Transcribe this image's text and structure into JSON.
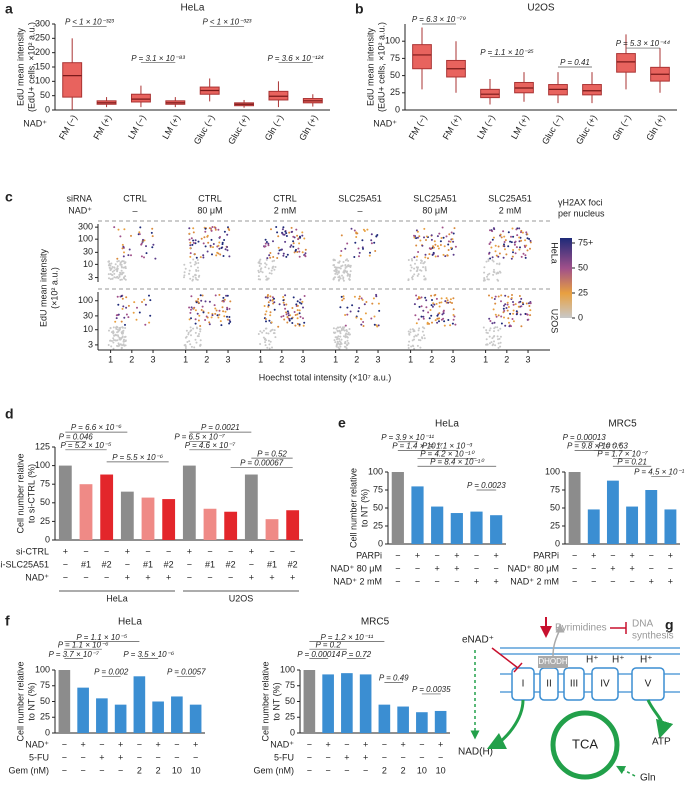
{
  "chart_data": [
    {
      "type": "box",
      "label": "a",
      "title": "HeLa",
      "ylabel": [
        "EdU mean intensity",
        "(EdU+ cells, ×10² a.u.)"
      ],
      "xprefix": "NAD⁺",
      "categories": [
        "FM (−)",
        "FM (+)",
        "LM (−)",
        "LM (+)",
        "Gluc (−)",
        "Gluc (+)",
        "Gln (−)",
        "Gln (+)"
      ],
      "boxes": [
        {
          "low": 0,
          "q1": 45,
          "median": 120,
          "q3": 165,
          "high": 250
        },
        {
          "low": 10,
          "q1": 20,
          "median": 25,
          "q3": 32,
          "high": 45
        },
        {
          "low": 10,
          "q1": 28,
          "median": 38,
          "q3": 55,
          "high": 85
        },
        {
          "low": 10,
          "q1": 20,
          "median": 25,
          "q3": 32,
          "high": 45
        },
        {
          "low": 30,
          "q1": 55,
          "median": 68,
          "q3": 80,
          "high": 110
        },
        {
          "low": 8,
          "q1": 15,
          "median": 20,
          "q3": 25,
          "high": 35
        },
        {
          "low": 10,
          "q1": 35,
          "median": 48,
          "q3": 65,
          "high": 100
        },
        {
          "low": 12,
          "q1": 25,
          "median": 32,
          "q3": 40,
          "high": 55
        }
      ],
      "color": "#e8635e",
      "ylim": [
        0,
        300
      ],
      "yticks": [
        0,
        50,
        100,
        150,
        200,
        250,
        300
      ],
      "annotations": [
        "P < 1 × 10⁻³²³",
        "P = 3.1 × 10⁻⁸³",
        "P < 1 × 10⁻³²³",
        "P = 3.6 × 10⁻¹²⁴"
      ]
    },
    {
      "type": "box",
      "label": "b",
      "title": "U2OS",
      "ylabel": [
        "EdU mean intensity",
        "(EdU+ cells, ×10² a.u.)"
      ],
      "xprefix": "NAD⁺",
      "categories": [
        "FM (−)",
        "FM (+)",
        "LM (−)",
        "LM (+)",
        "Gluc (−)",
        "Gluc (+)",
        "Gln (−)",
        "Gln (+)"
      ],
      "boxes": [
        {
          "low": 30,
          "q1": 60,
          "median": 80,
          "q3": 95,
          "high": 120
        },
        {
          "low": 25,
          "q1": 48,
          "median": 60,
          "q3": 72,
          "high": 100
        },
        {
          "low": 8,
          "q1": 18,
          "median": 23,
          "q3": 30,
          "high": 45
        },
        {
          "low": 12,
          "q1": 25,
          "median": 32,
          "q3": 40,
          "high": 55
        },
        {
          "low": 10,
          "q1": 22,
          "median": 30,
          "q3": 37,
          "high": 55
        },
        {
          "low": 10,
          "q1": 22,
          "median": 28,
          "q3": 37,
          "high": 55
        },
        {
          "low": 30,
          "q1": 55,
          "median": 70,
          "q3": 82,
          "high": 110
        },
        {
          "low": 25,
          "q1": 42,
          "median": 52,
          "q3": 62,
          "high": 90
        }
      ],
      "color": "#e8635e",
      "ylim": [
        0,
        125
      ],
      "yticks": [
        0,
        25,
        50,
        75,
        100
      ],
      "annotations": [
        "P = 6.3 × 10⁻⁷⁹",
        "P = 1.1 × 10⁻²⁵",
        "P = 0.41",
        "P = 5.3 × 10⁻⁴⁴"
      ]
    },
    {
      "type": "scatter",
      "label": "c",
      "ylabel": [
        "EdU mean intensity",
        "(×10² a.u.)"
      ],
      "xlabel": "Hoechst total intensity (×10⁷ a.u.)",
      "header_names": [
        "siRNA",
        "NAD⁺"
      ],
      "sirna": [
        "CTRL",
        "CTRL",
        "CTRL",
        "SLC25A51",
        "SLC25A51",
        "SLC25A51"
      ],
      "nad": [
        "–",
        "80 μM",
        "2 mM",
        "–",
        "80 μM",
        "2 mM"
      ],
      "xlim": [
        0.5,
        3.8
      ],
      "xticks": [
        1,
        2,
        3
      ],
      "ylog": true,
      "rows": [
        {
          "name": "HeLa",
          "ylim": [
            2,
            400
          ],
          "yticks": [
            3,
            10,
            30,
            100,
            300
          ]
        },
        {
          "name": "U2OS",
          "ylim": [
            2,
            200
          ],
          "yticks": [
            3,
            10,
            30,
            100
          ]
        }
      ],
      "colorbar": {
        "title": [
          "γH2AX foci",
          "per nucleus"
        ],
        "lim": [
          0,
          80
        ],
        "ticks": [
          {
            "value": 75,
            "label": "75+"
          },
          50,
          25,
          0
        ]
      }
    },
    {
      "type": "bar",
      "label": "d",
      "ylabel": [
        "Cell number relative",
        "to si-CTRL (%)"
      ],
      "values": [
        100,
        75,
        88,
        65,
        57,
        55,
        100,
        42,
        38,
        88,
        28,
        40
      ],
      "colors": [
        "#8c8c8c",
        "#ef8a86",
        "#e3262b",
        "#8c8c8c",
        "#ef8a86",
        "#e3262b",
        "#8c8c8c",
        "#ef8a86",
        "#e3262b",
        "#8c8c8c",
        "#ef8a86",
        "#e3262b"
      ],
      "ylim": [
        0,
        125
      ],
      "yticks": [
        0,
        25,
        50,
        75,
        100,
        125
      ],
      "rows": [
        {
          "label": "si-CTRL",
          "cells": [
            "+",
            "−",
            "−",
            "+",
            "−",
            "−",
            "+",
            "−",
            "−",
            "+",
            "−",
            "−"
          ]
        },
        {
          "label": "si-SLC25A51",
          "cells": [
            "−",
            "#1",
            "#2",
            "−",
            "#1",
            "#2",
            "−",
            "#1",
            "#2",
            "−",
            "#1",
            "#2"
          ]
        },
        {
          "label": "NAD⁺",
          "cells": [
            "−",
            "−",
            "−",
            "+",
            "+",
            "+",
            "−",
            "−",
            "−",
            "+",
            "+",
            "+"
          ]
        }
      ],
      "groups": [
        "HeLa",
        "U2OS"
      ],
      "annotations": [
        "P = 6.6 × 10⁻⁶",
        "P = 0.046",
        "P = 5.2 × 10⁻⁵",
        "P = 5.5 × 10⁻⁶",
        "P = 0.0021",
        "P = 6.5 × 10⁻⁷",
        "P = 4.6 × 10⁻⁷",
        "P = 0.52",
        "P = 0.00067"
      ]
    },
    {
      "type": "bar",
      "label": "e",
      "title": "HeLa",
      "ylabel": [
        "Cell number relative",
        "to NT (%)"
      ],
      "values": [
        100,
        80,
        52,
        43,
        45,
        40
      ],
      "colors": [
        "#8c8c8c",
        "#3b8ed2",
        "#3b8ed2",
        "#3b8ed2",
        "#3b8ed2",
        "#3b8ed2"
      ],
      "ylim": [
        0,
        100
      ],
      "yticks": [
        0,
        25,
        50,
        75,
        100
      ],
      "rows": [
        {
          "label": "PARPi",
          "cells": [
            "−",
            "+",
            "−",
            "+",
            "−",
            "+"
          ]
        },
        {
          "label": "NAD⁺ 80 μM",
          "cells": [
            "−",
            "−",
            "+",
            "+",
            "−",
            "−"
          ]
        },
        {
          "label": "NAD⁺ 2 mM",
          "cells": [
            "−",
            "−",
            "−",
            "−",
            "+",
            "+"
          ]
        }
      ],
      "annotations": [
        "P = 3.9 × 10⁻¹¹",
        "P = 1.4 × 10⁻⁷",
        "P = 1.1 × 10⁻³",
        "P = 4.2 × 10⁻¹⁰",
        "P = 8.4 × 10⁻¹⁰",
        "P = 0.0023"
      ]
    },
    {
      "type": "bar",
      "title": "MRC5",
      "values": [
        100,
        48,
        88,
        52,
        75,
        48
      ],
      "colors": [
        "#8c8c8c",
        "#3b8ed2",
        "#3b8ed2",
        "#3b8ed2",
        "#3b8ed2",
        "#3b8ed2"
      ],
      "ylim": [
        0,
        100
      ],
      "yticks": [
        0,
        25,
        50,
        75,
        100
      ],
      "rows": [
        {
          "label": "PARPi",
          "cells": [
            "−",
            "+",
            "−",
            "+",
            "−",
            "+"
          ]
        },
        {
          "label": "NAD⁺ 80 μM",
          "cells": [
            "−",
            "−",
            "+",
            "+",
            "−",
            "−"
          ]
        },
        {
          "label": "NAD⁺ 2 mM",
          "cells": [
            "−",
            "−",
            "−",
            "−",
            "+",
            "+"
          ]
        }
      ],
      "annotations": [
        "P = 0.00013",
        "P = 9.8 × 10⁻¹⁰",
        "P = 1.7 × 10⁻⁷",
        "P = 0.21",
        "P = 0.63",
        "P = 4.5 × 10⁻¹⁰"
      ]
    },
    {
      "type": "bar",
      "label": "f",
      "title": "HeLa",
      "ylabel": [
        "Cell number relative",
        "to NT (%)"
      ],
      "values": [
        100,
        72,
        55,
        45,
        90,
        50,
        58,
        45
      ],
      "colors": [
        "#8c8c8c",
        "#3b8ed2",
        "#3b8ed2",
        "#3b8ed2",
        "#3b8ed2",
        "#3b8ed2",
        "#3b8ed2",
        "#3b8ed2"
      ],
      "ylim": [
        0,
        100
      ],
      "yticks": [
        0,
        25,
        50,
        75,
        100
      ],
      "rows": [
        {
          "label": "NAD⁺",
          "cells": [
            "−",
            "+",
            "−",
            "+",
            "−",
            "+",
            "−",
            "+"
          ]
        },
        {
          "label": "5-FU",
          "cells": [
            "−",
            "−",
            "+",
            "+",
            "−",
            "−",
            "−",
            "−"
          ]
        },
        {
          "label": "Gem (nM)",
          "cells": [
            "−",
            "−",
            "−",
            "−",
            "2",
            "2",
            "10",
            "10"
          ]
        }
      ],
      "annotations": [
        "P = 1.1 × 10⁻⁵",
        "P = 1.1 × 10⁻⁶",
        "P = 3.7 × 10⁻⁷",
        "P = 0.002",
        "P = 3.5 × 10⁻⁶",
        "P = 0.0057"
      ]
    },
    {
      "type": "bar",
      "title": "MRC5",
      "ylabel": [
        "Cell number relative",
        "to NT (%)"
      ],
      "values": [
        100,
        93,
        95,
        93,
        45,
        42,
        33,
        35
      ],
      "colors": [
        "#8c8c8c",
        "#3b8ed2",
        "#3b8ed2",
        "#3b8ed2",
        "#3b8ed2",
        "#3b8ed2",
        "#3b8ed2",
        "#3b8ed2"
      ],
      "ylim": [
        0,
        100
      ],
      "yticks": [
        0,
        25,
        50,
        75,
        100
      ],
      "rows": [
        {
          "label": "NAD⁺",
          "cells": [
            "−",
            "+",
            "−",
            "+",
            "−",
            "+",
            "−",
            "+"
          ]
        },
        {
          "label": "5-FU",
          "cells": [
            "−",
            "−",
            "+",
            "+",
            "−",
            "−",
            "−",
            "−"
          ]
        },
        {
          "label": "Gem (nM)",
          "cells": [
            "−",
            "−",
            "−",
            "−",
            "2",
            "2",
            "10",
            "10"
          ]
        }
      ],
      "annotations": [
        "P = 1.2 × 10⁻¹¹",
        "P = 0.2",
        "P = 0.00014",
        "P = 0.72",
        "P = 0.49",
        "P = 0.0035"
      ]
    }
  ],
  "diagram": {
    "label": "g",
    "enad": "eNAD⁺",
    "pyrimidines": "Pyrimidines",
    "dna": [
      "DNA",
      "synthesis"
    ],
    "dhodh": "DHODH",
    "protons": [
      "H⁺",
      "H⁺",
      "H⁺"
    ],
    "complexes": [
      "I",
      "II",
      "III",
      "IV",
      "V"
    ],
    "nadh": "NAD(H)",
    "tca": "TCA",
    "atp": "ATP",
    "gln": "Gln"
  }
}
